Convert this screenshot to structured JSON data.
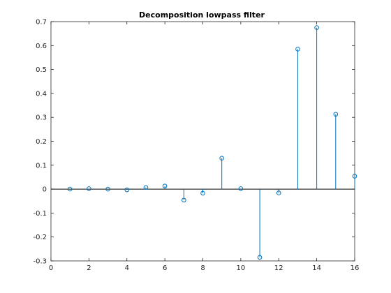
{
  "chart_data": {
    "type": "stem",
    "title": "Decomposition lowpass filter",
    "xlabel": "",
    "ylabel": "",
    "xlim": [
      0,
      16
    ],
    "ylim": [
      -0.3,
      0.7
    ],
    "xticks": [
      0,
      2,
      4,
      6,
      8,
      10,
      12,
      14,
      16
    ],
    "xtick_labels": [
      "0",
      "2",
      "4",
      "6",
      "8",
      "10",
      "12",
      "14",
      "16"
    ],
    "yticks": [
      -0.3,
      -0.2,
      -0.1,
      0,
      0.1,
      0.2,
      0.3,
      0.4,
      0.5,
      0.6,
      0.7
    ],
    "ytick_labels": [
      "-0.3",
      "-0.2",
      "-0.1",
      "0",
      "0.1",
      "0.2",
      "0.3",
      "0.4",
      "0.5",
      "0.6",
      "0.7"
    ],
    "x": [
      1,
      2,
      3,
      4,
      5,
      6,
      7,
      8,
      9,
      10,
      11,
      12,
      13,
      14,
      15,
      16
    ],
    "values": [
      0.0,
      0.002,
      0.0,
      -0.003,
      0.007,
      0.013,
      -0.046,
      -0.017,
      0.129,
      0.002,
      -0.285,
      -0.016,
      0.585,
      0.675,
      0.313,
      0.054
    ],
    "grid": false,
    "color": "#0072BD",
    "marker": "circle"
  }
}
